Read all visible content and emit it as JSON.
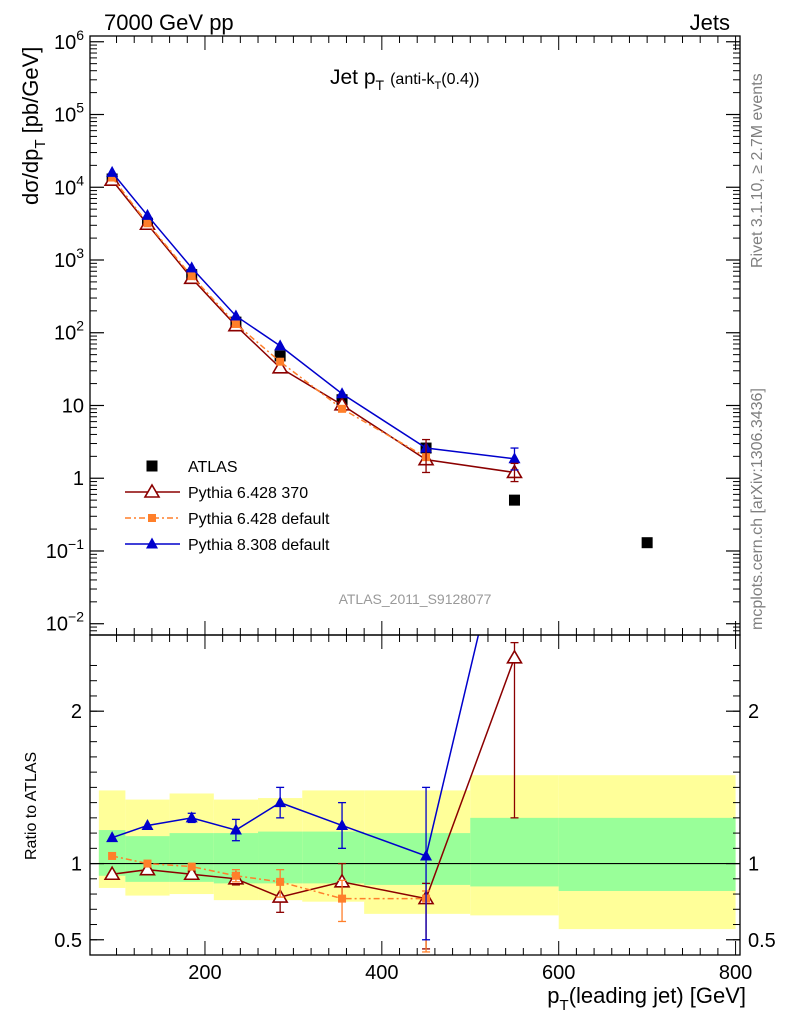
{
  "header": {
    "left": "7000 GeV pp",
    "right": "Jets"
  },
  "side_labels": {
    "rivet": "Rivet 3.1.10, ≥ 2.7M events",
    "mcplots": "mcplots.cern.ch [arXiv:1306.3436]"
  },
  "chart_data": [
    {
      "type": "line",
      "panel": "main",
      "title_main": "Jet p",
      "title_sub": "T",
      "title_paren": "(anti-k",
      "title_paren_sub": "T",
      "title_paren_end": "(0.4))",
      "ylabel_main": "dσ/dp",
      "ylabel_sub": "T",
      "ylabel_units": "[pb/GeV]",
      "analysis_tag": "ATLAS_2011_S9128077",
      "yscale": "log",
      "ylim": [
        0.007,
        1200000
      ],
      "xlim": [
        70,
        805
      ],
      "y_ticks": [
        {
          "value": 1000000,
          "base": "10",
          "exp": "6"
        },
        {
          "value": 100000,
          "base": "10",
          "exp": "5"
        },
        {
          "value": 10000,
          "base": "10",
          "exp": "4"
        },
        {
          "value": 1000,
          "base": "10",
          "exp": "3"
        },
        {
          "value": 100,
          "base": "10",
          "exp": "2"
        },
        {
          "value": 10,
          "base": "10",
          "exp": ""
        },
        {
          "value": 1,
          "base": "1",
          "exp": ""
        },
        {
          "value": 0.1,
          "base": "10",
          "exp": "−1"
        },
        {
          "value": 0.01,
          "base": "10",
          "exp": "−2"
        }
      ],
      "legend_position": "bottom-left",
      "series": [
        {
          "name": "ATLAS",
          "marker": "square",
          "color": "#000000",
          "x": [
            95,
            135,
            185,
            235,
            285,
            355,
            450,
            550,
            700
          ],
          "y": [
            13000,
            3200,
            630,
            140,
            48,
            12,
            2.6,
            0.5,
            0.13
          ]
        },
        {
          "name": "Pythia 6.428 370",
          "marker": "open-triangle",
          "color": "#8b0000",
          "x": [
            95,
            135,
            185,
            235,
            285,
            355,
            450,
            550
          ],
          "y": [
            12500,
            3100,
            560,
            125,
            33,
            10.2,
            1.8,
            1.2
          ]
        },
        {
          "name": "Pythia 6.428 default",
          "marker": "small-square",
          "color": "#ff7f2a",
          "dashed": true,
          "x": [
            95,
            135,
            185,
            235,
            285,
            355,
            450
          ],
          "y": [
            13600,
            3200,
            600,
            132,
            40,
            9.0,
            1.95
          ]
        },
        {
          "name": "Pythia 8.308 default",
          "marker": "filled-triangle",
          "color": "#0000cc",
          "x": [
            95,
            135,
            185,
            235,
            285,
            355,
            450,
            550
          ],
          "y": [
            16000,
            4100,
            780,
            170,
            66,
            14.5,
            2.6,
            1.85
          ]
        }
      ]
    },
    {
      "type": "line",
      "panel": "ratio",
      "ylabel": "Ratio to ATLAS",
      "xlabel_main": "p",
      "xlabel_sub": "T",
      "xlabel_rest": "(leading jet) [GeV]",
      "ylim": [
        0.4,
        2.5
      ],
      "xlim": [
        70,
        805
      ],
      "x_ticks": [
        200,
        400,
        600,
        800
      ],
      "y_ticks": [
        0.5,
        1,
        2
      ],
      "uncertainty_bands": {
        "edges": [
          80,
          110,
          160,
          210,
          260,
          310,
          380,
          500,
          600,
          800
        ],
        "outer_low": [
          0.84,
          0.79,
          0.8,
          0.76,
          0.76,
          0.75,
          0.67,
          0.66,
          0.57
        ],
        "outer_high": [
          1.48,
          1.42,
          1.46,
          1.42,
          1.43,
          1.48,
          1.48,
          1.58,
          1.58
        ],
        "inner_low": [
          0.92,
          0.88,
          0.88,
          0.87,
          0.87,
          0.87,
          0.86,
          0.85,
          0.82
        ],
        "inner_high": [
          1.22,
          1.18,
          1.2,
          1.2,
          1.21,
          1.21,
          1.2,
          1.3,
          1.3
        ]
      },
      "series": [
        {
          "name": "Pythia 6.428 370",
          "color": "#8b0000",
          "x": [
            95,
            135,
            185,
            235,
            285,
            355,
            450,
            550
          ],
          "y": [
            0.93,
            0.96,
            0.93,
            0.9,
            0.78,
            0.88,
            0.77,
            2.35
          ],
          "err_low": [
            0,
            0,
            0.02,
            0.04,
            0.1,
            0.1,
            0.33,
            1.05
          ],
          "err_high": [
            0,
            0,
            0.02,
            0.04,
            0.1,
            0.12,
            0.1,
            0.1
          ]
        },
        {
          "name": "Pythia 6.428 default",
          "color": "#ff7f2a",
          "dashed": true,
          "x": [
            95,
            135,
            185,
            235,
            285,
            355,
            450
          ],
          "y": [
            1.05,
            1.0,
            0.98,
            0.92,
            0.88,
            0.77,
            0.77
          ],
          "err_low": [
            0,
            0,
            0,
            0.04,
            0.1,
            0.15,
            0.35
          ],
          "err_high": [
            0,
            0,
            0,
            0.04,
            0.08,
            0.12,
            0.05
          ]
        },
        {
          "name": "Pythia 8.308 default",
          "color": "#0000cc",
          "x": [
            95,
            135,
            185,
            235,
            285,
            355,
            450,
            550
          ],
          "y": [
            1.17,
            1.25,
            1.3,
            1.22,
            1.4,
            1.25,
            1.05,
            3.5
          ],
          "err_low": [
            0,
            0,
            0.03,
            0.07,
            0.1,
            0.15,
            0.55,
            0
          ],
          "err_high": [
            0,
            0,
            0.03,
            0.07,
            0.1,
            0.15,
            0.45,
            0
          ]
        }
      ]
    }
  ]
}
